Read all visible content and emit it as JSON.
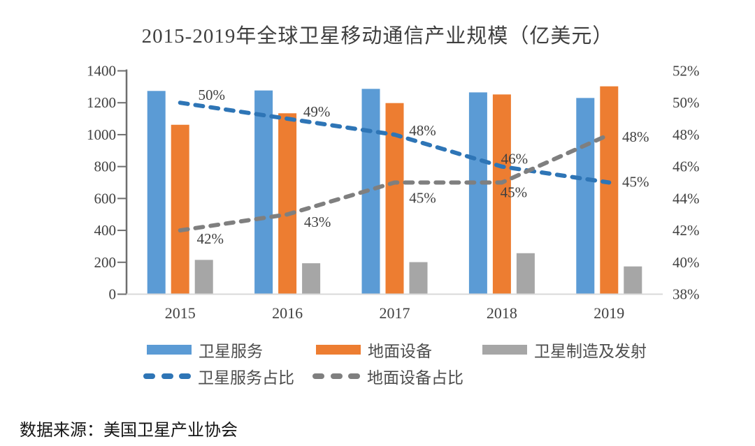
{
  "title": "2015-2019年全球卫星移动通信产业规模（亿美元）",
  "source": "数据来源：美国卫星产业协会",
  "colors": {
    "blue_bar": "#5B9BD5",
    "orange_bar": "#ED7D31",
    "gray_bar": "#A6A6A6",
    "blue_line": "#2E75B6",
    "gray_line": "#7F7F7F",
    "axis_text": "#404040",
    "axis_line": "#6E6E6E",
    "baseline": "#D9D9D9"
  },
  "chart_data": {
    "type": "bar",
    "subtype": "grouped bars with two dashed percentage lines on secondary axis",
    "title": "2015-2019年全球卫星移动通信产业规模（亿美元）",
    "categories": [
      "2015",
      "2016",
      "2017",
      "2018",
      "2019"
    ],
    "bar_series": [
      {
        "name": "卫星服务",
        "color_key": "blue_bar",
        "values": [
          1274,
          1277,
          1287,
          1265,
          1230
        ]
      },
      {
        "name": "地面设备",
        "color_key": "orange_bar",
        "values": [
          1062,
          1134,
          1198,
          1252,
          1303
        ]
      },
      {
        "name": "卫星制造及发射",
        "color_key": "gray_bar",
        "values": [
          215,
          194,
          201,
          257,
          174
        ]
      }
    ],
    "line_series": [
      {
        "name": "卫星服务占比",
        "color_key": "blue_line",
        "values": [
          50,
          49,
          48,
          46,
          45
        ],
        "labels": [
          "50%",
          "49%",
          "48%",
          "46%",
          "45%"
        ]
      },
      {
        "name": "地面设备占比",
        "color_key": "gray_line",
        "values": [
          42,
          43,
          45,
          45,
          48
        ],
        "labels": [
          "42%",
          "43%",
          "45%",
          "45%",
          "48%"
        ]
      }
    ],
    "left_axis": {
      "min": 0,
      "max": 1400,
      "step": 200,
      "tick_labels": [
        "0",
        "200",
        "400",
        "600",
        "800",
        "1000",
        "1200",
        "1400"
      ]
    },
    "right_axis": {
      "min": 38,
      "max": 52,
      "step": 2,
      "tick_labels": [
        "38%",
        "40%",
        "42%",
        "44%",
        "46%",
        "48%",
        "50%",
        "52%"
      ]
    },
    "xlabel": "",
    "ylabel": "",
    "grid": false,
    "legend_position": "bottom"
  }
}
